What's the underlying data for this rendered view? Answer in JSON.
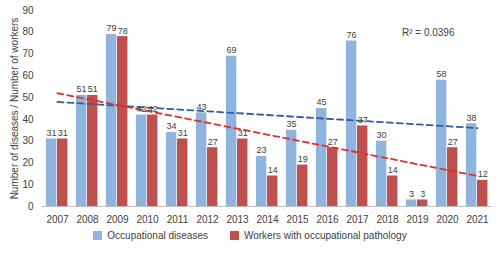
{
  "chart_data": {
    "type": "bar",
    "ylabel": "Number of diseases / Number of workers",
    "categories": [
      "2007",
      "2008",
      "2009",
      "2010",
      "2011",
      "2012",
      "2013",
      "2014",
      "2015",
      "2016",
      "2017",
      "2018",
      "2019",
      "2020",
      "2021"
    ],
    "series": [
      {
        "name": "Occupational diseases",
        "color": "#8fb4de",
        "values": [
          31,
          51,
          79,
          42,
          34,
          43,
          69,
          23,
          35,
          45,
          76,
          30,
          3,
          58,
          38
        ]
      },
      {
        "name": "Workers with occupational pathology",
        "color": "#c0504d",
        "values": [
          31,
          51,
          78,
          42,
          31,
          27,
          31,
          14,
          19,
          27,
          37,
          14,
          3,
          27,
          12
        ]
      },
      {
        "type": "line",
        "line_style": "dashed",
        "color": "#2e5c9e",
        "x": [
          "2007",
          "2021"
        ],
        "values": [
          48,
          36
        ]
      },
      {
        "type": "line",
        "line_style": "dashed",
        "color": "#e0302a",
        "x": [
          "2007",
          "2021"
        ],
        "values": [
          52,
          14
        ]
      }
    ],
    "ylim": [
      0,
      90
    ],
    "yticks": [
      0,
      10,
      20,
      30,
      40,
      50,
      60,
      70,
      80,
      90
    ],
    "grid": false,
    "legend": "bottom",
    "data_labels": true,
    "annotations": [
      "R² = 0.0396"
    ]
  }
}
